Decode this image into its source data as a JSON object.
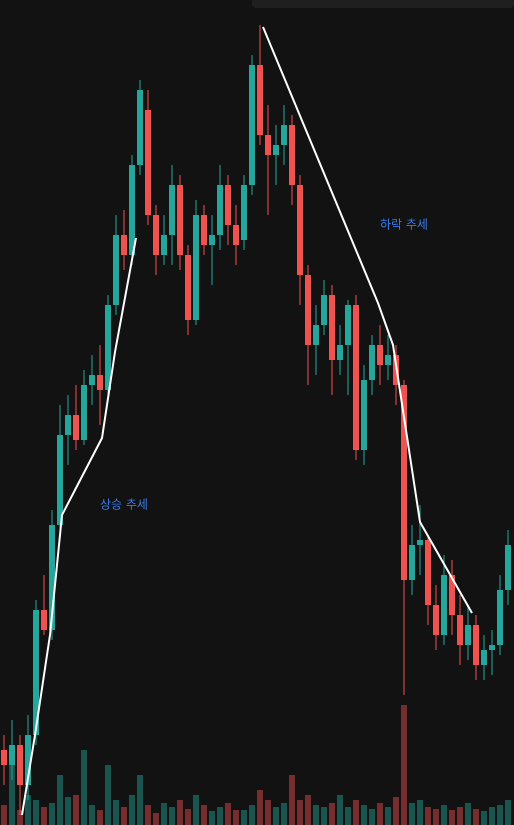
{
  "chart_data": {
    "type": "candlestick",
    "annotations": [
      "상승 추세",
      "하락 추세"
    ],
    "open": [
      75,
      60,
      80,
      40,
      90,
      215,
      195,
      300,
      390,
      410,
      385,
      440,
      450,
      435,
      520,
      590,
      570,
      660,
      715,
      610,
      570,
      590,
      640,
      570,
      505,
      610,
      580,
      590,
      640,
      600,
      585,
      640,
      760,
      690,
      670,
      680,
      700,
      640,
      550,
      480,
      500,
      530,
      465,
      480,
      520,
      375,
      445,
      480,
      460,
      470,
      440,
      245,
      280,
      285,
      220,
      190,
      250,
      210,
      180,
      200,
      160,
      175,
      180,
      235
    ],
    "close": [
      60,
      80,
      40,
      90,
      215,
      195,
      300,
      390,
      410,
      385,
      440,
      450,
      435,
      520,
      590,
      570,
      660,
      735,
      610,
      570,
      590,
      640,
      570,
      505,
      610,
      580,
      590,
      640,
      600,
      580,
      640,
      760,
      690,
      670,
      680,
      700,
      640,
      550,
      480,
      500,
      530,
      465,
      480,
      520,
      375,
      445,
      480,
      460,
      470,
      440,
      245,
      280,
      285,
      220,
      190,
      250,
      210,
      180,
      200,
      160,
      175,
      180,
      235,
      280
    ],
    "high": [
      90,
      105,
      90,
      110,
      225,
      250,
      315,
      420,
      430,
      440,
      455,
      470,
      480,
      530,
      610,
      615,
      670,
      745,
      735,
      620,
      610,
      660,
      650,
      580,
      625,
      620,
      610,
      660,
      650,
      620,
      650,
      770,
      800,
      720,
      700,
      720,
      710,
      650,
      560,
      520,
      545,
      540,
      500,
      525,
      530,
      460,
      490,
      500,
      490,
      480,
      445,
      300,
      320,
      290,
      240,
      270,
      265,
      230,
      220,
      210,
      190,
      195,
      250,
      295
    ],
    "low": [
      40,
      45,
      10,
      25,
      80,
      190,
      185,
      290,
      360,
      375,
      380,
      420,
      400,
      425,
      510,
      555,
      560,
      650,
      600,
      550,
      560,
      560,
      555,
      490,
      500,
      570,
      540,
      575,
      580,
      560,
      575,
      630,
      680,
      610,
      640,
      660,
      620,
      520,
      440,
      450,
      490,
      430,
      450,
      430,
      365,
      360,
      430,
      440,
      445,
      420,
      130,
      230,
      250,
      200,
      175,
      180,
      190,
      160,
      165,
      145,
      145,
      150,
      170,
      220
    ],
    "volume": [
      20,
      60,
      15,
      30,
      25,
      18,
      22,
      50,
      28,
      30,
      75,
      20,
      15,
      60,
      25,
      18,
      30,
      50,
      20,
      12,
      22,
      18,
      25,
      16,
      30,
      20,
      14,
      18,
      22,
      15,
      15,
      20,
      35,
      25,
      18,
      22,
      50,
      25,
      30,
      20,
      18,
      22,
      30,
      18,
      25,
      20,
      16,
      22,
      18,
      28,
      120,
      22,
      25,
      18,
      16,
      20,
      15,
      18,
      22,
      16,
      14,
      18,
      20,
      25
    ],
    "ylim": [
      0,
      825
    ],
    "vlim": [
      0,
      825
    ],
    "up_color": "#26a69a",
    "down_color": "#ef5350"
  }
}
